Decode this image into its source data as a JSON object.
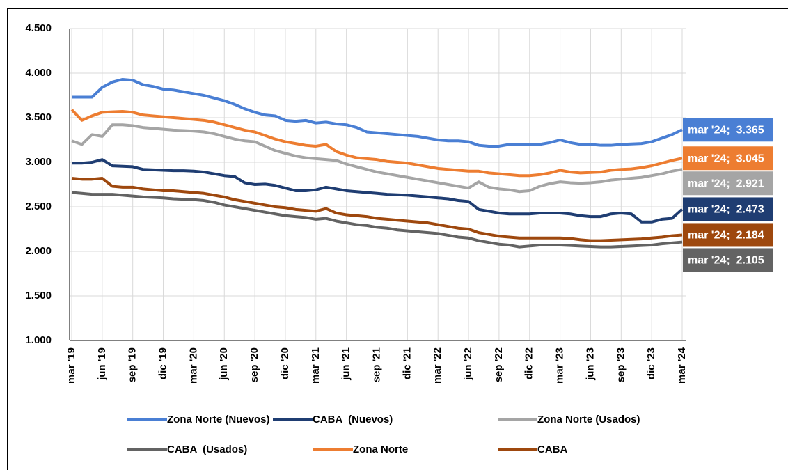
{
  "chart_data": {
    "type": "line",
    "categories": [
      "mar '19",
      null,
      null,
      "jun '19",
      null,
      null,
      "sep '19",
      null,
      null,
      "dic '19",
      null,
      null,
      "mar '20",
      null,
      null,
      "jun '20",
      null,
      null,
      "sep '20",
      null,
      null,
      "dic '20",
      null,
      null,
      "mar '21",
      null,
      null,
      "jun '21",
      null,
      null,
      "sep '21",
      null,
      null,
      "dic '21",
      null,
      null,
      "mar '22",
      null,
      null,
      "jun '22",
      null,
      null,
      "sep '22",
      null,
      null,
      "dic '22",
      null,
      null,
      "mar '23",
      null,
      null,
      "jun '23",
      null,
      null,
      "sep '23",
      null,
      null,
      "dic '23",
      null,
      null,
      "mar '24"
    ],
    "ylim": [
      1000,
      4500
    ],
    "yticks": [
      {
        "value": 1000,
        "label": "1.000"
      },
      {
        "value": 1500,
        "label": "1.500"
      },
      {
        "value": 2000,
        "label": "2.000"
      },
      {
        "value": 2500,
        "label": "2.500"
      },
      {
        "value": 3000,
        "label": "3.000"
      },
      {
        "value": 3500,
        "label": "3.500"
      },
      {
        "value": 4000,
        "label": "4.000"
      },
      {
        "value": 4500,
        "label": "4.500"
      }
    ],
    "grid": true,
    "legend": "bottom",
    "series": [
      {
        "name": "Zona Norte (Nuevos)",
        "color": "#4a7fd4",
        "values": [
          3730,
          3730,
          3730,
          3840,
          3900,
          3930,
          3920,
          3870,
          3850,
          3820,
          3810,
          3790,
          3770,
          3750,
          3720,
          3690,
          3650,
          3600,
          3560,
          3530,
          3520,
          3470,
          3460,
          3470,
          3440,
          3450,
          3430,
          3420,
          3390,
          3340,
          3330,
          3320,
          3310,
          3300,
          3290,
          3270,
          3250,
          3240,
          3240,
          3230,
          3190,
          3180,
          3180,
          3200,
          3200,
          3200,
          3200,
          3220,
          3250,
          3220,
          3200,
          3200,
          3190,
          3190,
          3200,
          3205,
          3210,
          3230,
          3270,
          3310,
          3365
        ],
        "value_labels": [
          null,
          null,
          null,
          null,
          null,
          null,
          null,
          null,
          null,
          null,
          null,
          null,
          null,
          null,
          null,
          null,
          null,
          null,
          null,
          null,
          null,
          null,
          null,
          null,
          null,
          null,
          null,
          null,
          null,
          null,
          null,
          null,
          null,
          null,
          null,
          null,
          null,
          null,
          null,
          null,
          null,
          null,
          null,
          null,
          null,
          null,
          null,
          null,
          null,
          null,
          null,
          null,
          null,
          null,
          null,
          null,
          null,
          null,
          null,
          null,
          "mar '24;  3.365"
        ]
      },
      {
        "name": "CABA  (Nuevos)",
        "color": "#1f3d72",
        "values": [
          2990,
          2990,
          3000,
          3030,
          2960,
          2955,
          2950,
          2920,
          2915,
          2910,
          2905,
          2905,
          2900,
          2890,
          2870,
          2850,
          2840,
          2770,
          2750,
          2755,
          2740,
          2710,
          2680,
          2680,
          2690,
          2720,
          2700,
          2680,
          2670,
          2660,
          2650,
          2640,
          2635,
          2630,
          2620,
          2610,
          2600,
          2590,
          2570,
          2560,
          2470,
          2450,
          2430,
          2420,
          2420,
          2420,
          2430,
          2430,
          2430,
          2420,
          2400,
          2390,
          2390,
          2420,
          2430,
          2420,
          2330,
          2330,
          2360,
          2370,
          2473
        ],
        "value_labels": [
          null,
          null,
          null,
          null,
          null,
          null,
          null,
          null,
          null,
          null,
          null,
          null,
          null,
          null,
          null,
          null,
          null,
          null,
          null,
          null,
          null,
          null,
          null,
          null,
          null,
          null,
          null,
          null,
          null,
          null,
          null,
          null,
          null,
          null,
          null,
          null,
          null,
          null,
          null,
          null,
          null,
          null,
          null,
          null,
          null,
          null,
          null,
          null,
          null,
          null,
          null,
          null,
          null,
          null,
          null,
          null,
          null,
          null,
          null,
          null,
          "mar '24;  2.473"
        ]
      },
      {
        "name": "Zona Norte (Usados)",
        "color": "#a5a5a5",
        "values": [
          3240,
          3200,
          3310,
          3290,
          3420,
          3420,
          3410,
          3390,
          3380,
          3370,
          3360,
          3355,
          3350,
          3340,
          3320,
          3290,
          3260,
          3240,
          3230,
          3180,
          3130,
          3100,
          3070,
          3050,
          3040,
          3030,
          3020,
          2980,
          2950,
          2920,
          2890,
          2870,
          2850,
          2830,
          2810,
          2790,
          2770,
          2750,
          2730,
          2710,
          2780,
          2720,
          2700,
          2690,
          2670,
          2680,
          2730,
          2760,
          2780,
          2770,
          2765,
          2770,
          2780,
          2800,
          2810,
          2820,
          2830,
          2850,
          2870,
          2900,
          2921
        ],
        "value_labels": [
          null,
          null,
          null,
          null,
          null,
          null,
          null,
          null,
          null,
          null,
          null,
          null,
          null,
          null,
          null,
          null,
          null,
          null,
          null,
          null,
          null,
          null,
          null,
          null,
          null,
          null,
          null,
          null,
          null,
          null,
          null,
          null,
          null,
          null,
          null,
          null,
          null,
          null,
          null,
          null,
          null,
          null,
          null,
          null,
          null,
          null,
          null,
          null,
          null,
          null,
          null,
          null,
          null,
          null,
          null,
          null,
          null,
          null,
          null,
          null,
          "mar '24;  2.921"
        ]
      },
      {
        "name": "CABA  (Usados)",
        "color": "#636363",
        "values": [
          2660,
          2650,
          2640,
          2640,
          2640,
          2630,
          2620,
          2610,
          2605,
          2600,
          2590,
          2585,
          2580,
          2570,
          2550,
          2520,
          2500,
          2480,
          2460,
          2440,
          2420,
          2400,
          2390,
          2380,
          2360,
          2370,
          2340,
          2320,
          2300,
          2290,
          2270,
          2260,
          2240,
          2230,
          2220,
          2210,
          2200,
          2180,
          2160,
          2150,
          2120,
          2100,
          2080,
          2070,
          2050,
          2060,
          2070,
          2070,
          2070,
          2065,
          2060,
          2055,
          2050,
          2050,
          2055,
          2060,
          2065,
          2070,
          2085,
          2095,
          2105
        ],
        "value_labels": [
          null,
          null,
          null,
          null,
          null,
          null,
          null,
          null,
          null,
          null,
          null,
          null,
          null,
          null,
          null,
          null,
          null,
          null,
          null,
          null,
          null,
          null,
          null,
          null,
          null,
          null,
          null,
          null,
          null,
          null,
          null,
          null,
          null,
          null,
          null,
          null,
          null,
          null,
          null,
          null,
          null,
          null,
          null,
          null,
          null,
          null,
          null,
          null,
          null,
          null,
          null,
          null,
          null,
          null,
          null,
          null,
          null,
          null,
          null,
          null,
          "mar '24;  2.105"
        ]
      },
      {
        "name": "Zona Norte",
        "color": "#ed7d31",
        "values": [
          3590,
          3470,
          3520,
          3560,
          3565,
          3570,
          3560,
          3530,
          3520,
          3510,
          3500,
          3490,
          3480,
          3470,
          3450,
          3420,
          3390,
          3360,
          3340,
          3300,
          3260,
          3230,
          3210,
          3190,
          3180,
          3200,
          3120,
          3080,
          3050,
          3040,
          3030,
          3010,
          3000,
          2990,
          2970,
          2950,
          2930,
          2920,
          2910,
          2900,
          2900,
          2880,
          2870,
          2860,
          2850,
          2850,
          2860,
          2880,
          2910,
          2890,
          2880,
          2885,
          2890,
          2910,
          2920,
          2925,
          2940,
          2960,
          2990,
          3020,
          3045
        ],
        "value_labels": [
          null,
          null,
          null,
          null,
          null,
          null,
          null,
          null,
          null,
          null,
          null,
          null,
          null,
          null,
          null,
          null,
          null,
          null,
          null,
          null,
          null,
          null,
          null,
          null,
          null,
          null,
          null,
          null,
          null,
          null,
          null,
          null,
          null,
          null,
          null,
          null,
          null,
          null,
          null,
          null,
          null,
          null,
          null,
          null,
          null,
          null,
          null,
          null,
          null,
          null,
          null,
          null,
          null,
          null,
          null,
          null,
          null,
          null,
          null,
          null,
          "mar '24;  3.045"
        ]
      },
      {
        "name": "CABA",
        "color": "#9e480e",
        "values": [
          2820,
          2810,
          2810,
          2820,
          2730,
          2720,
          2720,
          2700,
          2690,
          2680,
          2680,
          2670,
          2660,
          2650,
          2630,
          2610,
          2580,
          2560,
          2540,
          2520,
          2500,
          2490,
          2470,
          2460,
          2450,
          2480,
          2430,
          2410,
          2400,
          2390,
          2370,
          2360,
          2350,
          2340,
          2330,
          2320,
          2300,
          2280,
          2260,
          2250,
          2210,
          2190,
          2170,
          2160,
          2150,
          2150,
          2150,
          2150,
          2150,
          2145,
          2130,
          2120,
          2120,
          2125,
          2130,
          2135,
          2140,
          2150,
          2160,
          2175,
          2184
        ],
        "value_labels": [
          null,
          null,
          null,
          null,
          null,
          null,
          null,
          null,
          null,
          null,
          null,
          null,
          null,
          null,
          null,
          null,
          null,
          null,
          null,
          null,
          null,
          null,
          null,
          null,
          null,
          null,
          null,
          null,
          null,
          null,
          null,
          null,
          null,
          null,
          null,
          null,
          null,
          null,
          null,
          null,
          null,
          null,
          null,
          null,
          null,
          null,
          null,
          null,
          null,
          null,
          null,
          null,
          null,
          null,
          null,
          null,
          null,
          null,
          null,
          null,
          "mar '24;  2.184"
        ]
      }
    ]
  }
}
